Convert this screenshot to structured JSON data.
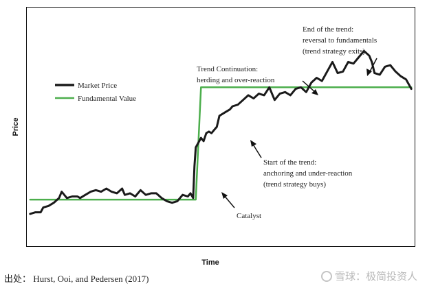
{
  "chart_data": {
    "type": "line",
    "xlabel": "Time",
    "ylabel": "Price",
    "series": [
      {
        "name": "Market Price",
        "color": "#1a1a1a",
        "points": [
          [
            0,
            10
          ],
          [
            2,
            11
          ],
          [
            4,
            11
          ],
          [
            5,
            14
          ],
          [
            7,
            15
          ],
          [
            9,
            17
          ],
          [
            11,
            20
          ],
          [
            12,
            24
          ],
          [
            14,
            20
          ],
          [
            16,
            21
          ],
          [
            18,
            21
          ],
          [
            19,
            20
          ],
          [
            21,
            22
          ],
          [
            23,
            24
          ],
          [
            25,
            25
          ],
          [
            27,
            24
          ],
          [
            29,
            26
          ],
          [
            31,
            24
          ],
          [
            33,
            23
          ],
          [
            35,
            26
          ],
          [
            36,
            22
          ],
          [
            38,
            23
          ],
          [
            40,
            21
          ],
          [
            42,
            25
          ],
          [
            44,
            22
          ],
          [
            46,
            23
          ],
          [
            48,
            23
          ],
          [
            50,
            20
          ],
          [
            52,
            18
          ],
          [
            54,
            17
          ],
          [
            56,
            18
          ],
          [
            58,
            22
          ],
          [
            60,
            21
          ],
          [
            61,
            23
          ],
          [
            62,
            20
          ],
          [
            62.5,
            40
          ],
          [
            63,
            52
          ],
          [
            64,
            55
          ],
          [
            65,
            58
          ],
          [
            66,
            56
          ],
          [
            67,
            61
          ],
          [
            68,
            62
          ],
          [
            69,
            61
          ],
          [
            70,
            63
          ],
          [
            71,
            65
          ],
          [
            72,
            72
          ],
          [
            74,
            74
          ],
          [
            76,
            76
          ],
          [
            77,
            78
          ],
          [
            79,
            79
          ],
          [
            81,
            82
          ],
          [
            83,
            85
          ],
          [
            85,
            83
          ],
          [
            87,
            86
          ],
          [
            89,
            85
          ],
          [
            91,
            90
          ],
          [
            93,
            82
          ],
          [
            95,
            86
          ],
          [
            97,
            87
          ],
          [
            99,
            85
          ],
          [
            101,
            89
          ],
          [
            103,
            90
          ],
          [
            105,
            87
          ],
          [
            107,
            93
          ],
          [
            109,
            96
          ],
          [
            111,
            94
          ],
          [
            113,
            100
          ],
          [
            115,
            106
          ],
          [
            117,
            99
          ],
          [
            119,
            100
          ],
          [
            121,
            106
          ],
          [
            123,
            105
          ],
          [
            125,
            109
          ],
          [
            127,
            113
          ],
          [
            129,
            110
          ],
          [
            130,
            106
          ],
          [
            131,
            99
          ],
          [
            133,
            98
          ],
          [
            135,
            103
          ],
          [
            137,
            104
          ],
          [
            139,
            100
          ],
          [
            141,
            97
          ],
          [
            143,
            95
          ],
          [
            144,
            92
          ],
          [
            145,
            89
          ]
        ]
      },
      {
        "name": "Fundamental Value",
        "color": "#4cae4c",
        "points": [
          [
            0,
            19
          ],
          [
            63,
            19
          ],
          [
            65,
            90
          ],
          [
            145,
            90
          ]
        ]
      }
    ],
    "xlim": [
      -1,
      146
    ],
    "ylim": [
      -10,
      140
    ],
    "grid": false,
    "legend": "upper-left",
    "annotations": [
      {
        "lines": [
          "Catalyst"
        ]
      },
      {
        "lines": [
          "Start of the trend:",
          "anchoring and under-reaction",
          "(trend strategy buys)"
        ]
      },
      {
        "lines": [
          "Trend Continuation:",
          "herding and over-reaction"
        ]
      },
      {
        "lines": [
          "End of the trend:",
          "reversal to fundamentals",
          "(trend strategy exits)"
        ]
      }
    ]
  },
  "footer": {
    "source": "出处：  Hurst, Ooi, and Pedersen (2017)",
    "watermark": "雪球：极简投资人"
  }
}
